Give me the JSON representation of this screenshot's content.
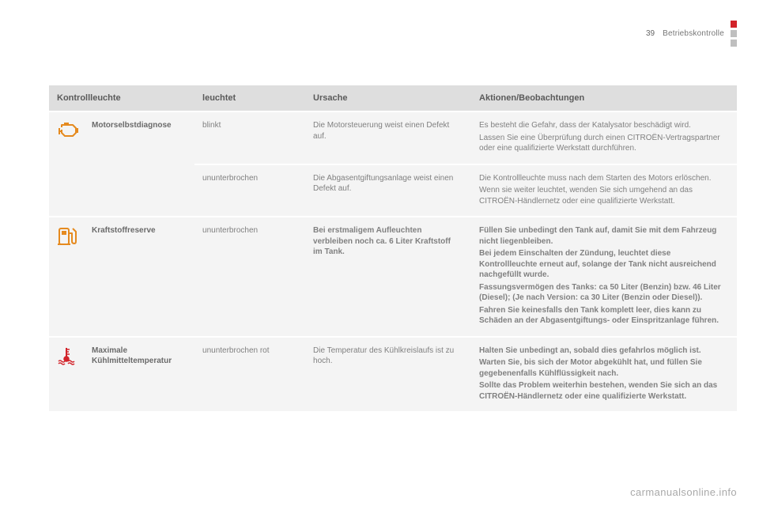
{
  "header": {
    "page_number": "39",
    "section_title": "Betriebskontrolle",
    "tab_colors": [
      "#d2232a",
      "#bfbfbf",
      "#bfbfbf"
    ]
  },
  "table": {
    "columns": {
      "lamp": "Kontrollleuchte",
      "state": "leuchtet",
      "cause": "Ursache",
      "action": "Aktionen/Beobachtungen"
    },
    "rows": [
      {
        "icon": "engine-icon",
        "icon_rowspan": 2,
        "name": "Motorselbstdiagnose",
        "name_rowspan": 2,
        "state": "blinkt",
        "cause": "Die Motorsteuerung weist einen Defekt auf.",
        "action": "Es besteht die Gefahr, dass der Katalysator beschädigt wird.\nLassen Sie eine Überprüfung durch einen CITROËN-Vertragspartner oder eine qualifizierte Werkstatt durchführen."
      },
      {
        "state": "ununterbrochen",
        "cause": "Die Abgasentgiftungsanlage weist einen Defekt auf.",
        "action": "Die Kontrollleuchte muss nach dem Starten des Motors erlöschen.\nWenn sie weiter leuchtet, wenden Sie sich umgehend an das CITROËN-Händlernetz oder eine qualifizierte Werkstatt."
      },
      {
        "icon": "fuel-icon",
        "name": "Kraftstoffreserve",
        "name_bold": true,
        "state": "ununterbrochen",
        "cause": "Bei erstmaligem Aufleuchten verbleiben noch ca. 6 Liter Kraftstoff im Tank.",
        "action": "Füllen Sie unbedingt den Tank auf, damit Sie mit dem Fahrzeug nicht liegenbleiben.\nBei jedem Einschalten der Zündung, leuchtet diese Kontrollleuchte erneut auf, solange der Tank nicht ausreichend nachgefüllt wurde.\nFassungsvermögen des Tanks: ca 50 Liter (Benzin) bzw. 46 Liter (Diesel); (Je nach Version: ca 30 Liter (Benzin oder Diesel)).\nFahren Sie keinesfalls den Tank komplett leer, dies kann zu Schäden an der Abgasentgiftungs- oder Einspritzanlage führen."
      },
      {
        "icon": "temp-icon",
        "name": "Maximale Kühlmitteltemperatur",
        "state": "ununterbrochen rot",
        "cause": "Die Temperatur des Kühlkreislaufs ist zu hoch.",
        "action": "Halten Sie unbedingt an, sobald dies gefahrlos möglich ist.\nWarten Sie, bis sich der Motor abgekühlt hat, und füllen Sie gegebenenfalls Kühlflüssigkeit nach.\nSollte das Problem weiterhin bestehen, wenden Sie sich an das CITROËN-Händlernetz oder eine qualifizierte Werkstatt."
      }
    ]
  },
  "icons": {
    "engine_color": "#e58a1f",
    "fuel_color": "#e58a1f",
    "temp_color": "#d2232a"
  },
  "footer": {
    "watermark": "carmanualsonline.info"
  }
}
